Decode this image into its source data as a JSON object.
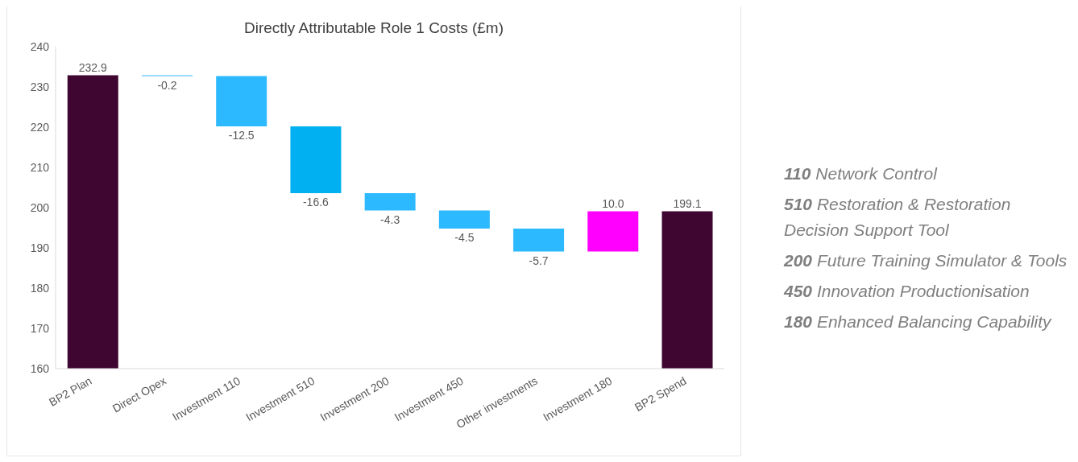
{
  "chart_data": {
    "type": "bar",
    "title": "Directly Attributable Role 1 Costs (£m)",
    "categories": [
      "BP2 Plan",
      "Direct Opex",
      "Investment 110",
      "Investment 510",
      "Investment 200",
      "Investment 450",
      "Other investments",
      "Investment 180",
      "BP2 Spend"
    ],
    "values": [
      232.9,
      -0.2,
      -12.5,
      -16.6,
      -4.3,
      -4.5,
      -5.7,
      10.0,
      199.1
    ],
    "base": [
      null,
      232.9,
      232.7,
      220.2,
      203.6,
      199.3,
      194.8,
      189.1,
      null
    ],
    "colors": [
      "#3e0630",
      "#2db9ff",
      "#2db9ff",
      "#00b0f0",
      "#2db9ff",
      "#2db9ff",
      "#2db9ff",
      "#ff00ff",
      "#3e0630"
    ],
    "value_labels": [
      "232.9",
      "-0.2",
      "-12.5",
      "-16.6",
      "-4.3",
      "-4.5",
      "-5.7",
      "10.0",
      "199.1"
    ],
    "ylim": [
      160,
      240
    ],
    "yticks": [
      160,
      170,
      180,
      190,
      200,
      210,
      220,
      230,
      240
    ],
    "grid": false,
    "legend": false,
    "annotations": [
      "110 Network Control",
      "510 Restoration & Restoration Decision Support Tool",
      "200 Future Training Simulator & Tools",
      "450 Innovation Productionisation",
      "180 Enhanced Balancing Capability"
    ]
  }
}
